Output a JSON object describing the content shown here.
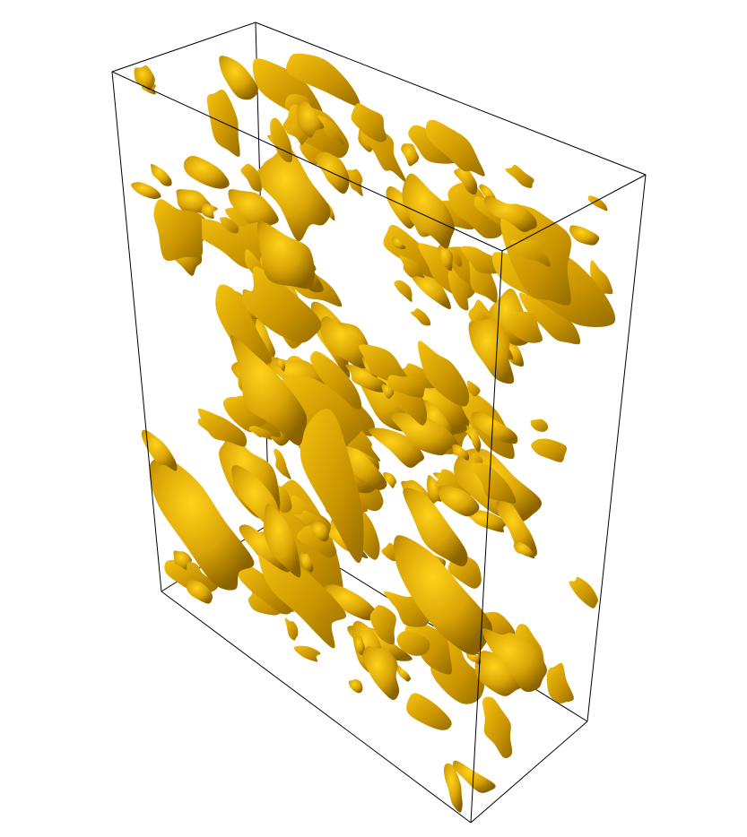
{
  "scene": {
    "subject": "isosurface",
    "surface_color": "#d9a406",
    "surface_highlight": "#ffd21a",
    "surface_shadow": "#8a6200",
    "box_edge_color": "#000000",
    "background_color": "#ffffff"
  }
}
